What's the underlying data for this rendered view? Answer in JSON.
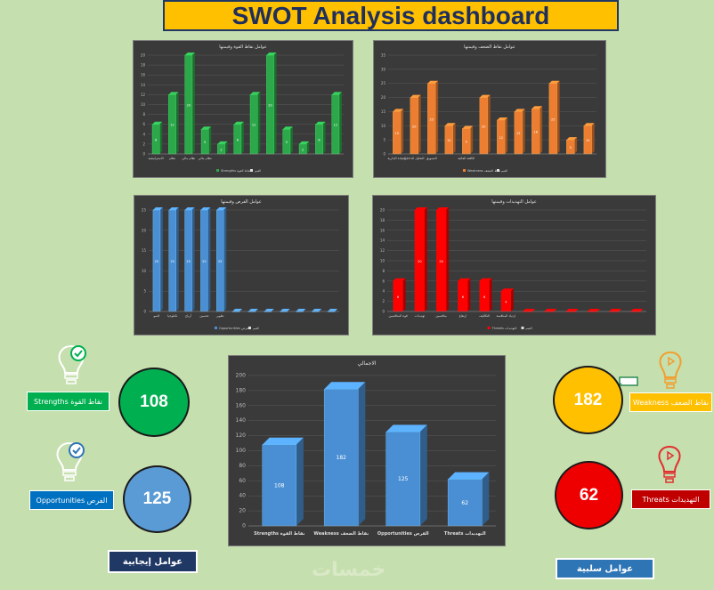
{
  "title": "SWOT Analysis dashboard",
  "colors": {
    "background": "#c6dfae",
    "strength": "#00b050",
    "weakness": "#ffc000",
    "opportunity": "#5b9bd5",
    "threat": "#ff0000",
    "chart_bg": "#3a3a3a"
  },
  "chart_data": [
    {
      "id": "strengths",
      "type": "bar",
      "title": "عوامل نقاط القوة وقيمتها",
      "color": "#2ca84a",
      "ylim": [
        0,
        20
      ],
      "yticks": [
        0,
        2,
        4,
        6,
        8,
        10,
        12,
        14,
        16,
        18,
        20
      ],
      "values": [
        6,
        12,
        20,
        5,
        2,
        6,
        12,
        20,
        5,
        2,
        6,
        12
      ],
      "categories": [
        "الاستراتيجية",
        "نظام",
        "نظام مالي",
        "نظام مالي",
        "",
        "",
        "",
        "",
        "",
        "",
        "",
        ""
      ],
      "legend": [
        "Strengths نقاط القوة",
        "القيم"
      ]
    },
    {
      "id": "weakness",
      "type": "bar",
      "title": "عوامل نقاط الضعف وقيمتها",
      "color": "#ed7d31",
      "ylim": [
        0,
        35
      ],
      "yticks": [
        0,
        5,
        10,
        15,
        20,
        25,
        30,
        35
      ],
      "values": [
        15,
        20,
        25,
        10,
        9,
        20,
        12,
        15,
        16,
        25,
        5,
        10
      ],
      "categories": [
        "القيادة الإدارية",
        "التحليل الداخلي",
        "التسويق",
        "",
        "الكلفة العالية",
        "",
        "",
        "",
        "",
        "",
        "",
        ""
      ],
      "legend": [
        "Weakness نقاط الضعف",
        "القيم"
      ]
    },
    {
      "id": "opportunities",
      "type": "bar",
      "title": "عوامل الفرص وقيمتها",
      "color": "#4a8fd4",
      "ylim": [
        0,
        25
      ],
      "yticks": [
        0,
        5,
        10,
        15,
        20,
        25
      ],
      "values": [
        25,
        25,
        25,
        25,
        25,
        0,
        0,
        0,
        0,
        0,
        0,
        0
      ],
      "categories": [
        "النمو",
        "تكنلوجيا",
        "أرباح",
        "تحسين",
        "تطوير",
        "",
        "",
        "",
        "",
        "",
        "",
        ""
      ],
      "legend": [
        "Opportunities الفرص",
        "القيم"
      ]
    },
    {
      "id": "threats",
      "type": "bar",
      "title": "عوامل التهديدات وقيمتها",
      "color": "#ff0000",
      "ylim": [
        0,
        20
      ],
      "yticks": [
        0,
        2,
        4,
        6,
        8,
        10,
        12,
        14,
        16,
        18,
        20
      ],
      "values": [
        6,
        20,
        20,
        6,
        6,
        4,
        0,
        0,
        0,
        0,
        0,
        0
      ],
      "categories": [
        "قوة المنافسين",
        "تهديدات",
        "منافسين",
        "ارتفاع",
        "التكاليف",
        "ازدياد المنافسة",
        "",
        "",
        "",
        "",
        "",
        ""
      ],
      "legend": [
        "Threats التهديدات",
        "القيم"
      ]
    },
    {
      "id": "total",
      "type": "bar",
      "title": "الاجمالي",
      "color": "#4a8fd4",
      "ylim": [
        0,
        200
      ],
      "yticks": [
        0,
        20,
        40,
        60,
        80,
        100,
        120,
        140,
        160,
        180,
        200
      ],
      "values": [
        108,
        182,
        125,
        62
      ],
      "categories": [
        "Strengths نقاط القوة",
        "Weakness نقاط الضعف",
        "Opportunities الفرص",
        "Threats التهديدات"
      ]
    }
  ],
  "totals": {
    "strengths": {
      "value": "108",
      "label": "Strengths نقاط القوة"
    },
    "opportunities": {
      "value": "125",
      "label": "Opportunities الفرص"
    },
    "weakness": {
      "value": "182",
      "label": "Weakness نقاط الضعف"
    },
    "threats": {
      "value": "62",
      "label": "Threats التهديدات"
    }
  },
  "groups": {
    "positive": "عوامل إيجابية",
    "negative": "عوامل سلبية"
  },
  "watermark": "خمسات"
}
